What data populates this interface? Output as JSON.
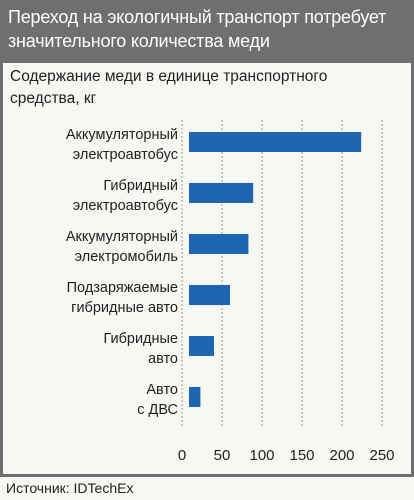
{
  "header": {
    "title": "Переход на экологичный транспорт потребует значительного количества меди"
  },
  "chart_data": {
    "type": "bar",
    "orientation": "horizontal",
    "title": "",
    "subtitle": "Содержание меди в единице транспортного средства, кг",
    "xlabel": "",
    "ylabel": "",
    "categories": [
      [
        "Аккумуляторный",
        "электроавтобус"
      ],
      [
        "Гибридный",
        "электроавтобус"
      ],
      [
        "Аккумуляторный",
        "электромобиль"
      ],
      [
        "Подзаряжаемые",
        "гибридные авто"
      ],
      [
        "Гибридные",
        "авто"
      ],
      [
        "Авто",
        "с ДВС"
      ]
    ],
    "values": [
      224,
      89,
      83,
      60,
      40,
      23
    ],
    "xlim": [
      0,
      250
    ],
    "xticks": [
      0,
      50,
      100,
      150,
      200,
      250
    ],
    "grid": true,
    "bar_color": "#1f64b0",
    "grid_color": "#9a9a9a"
  },
  "footer": {
    "source": "Источник: IDTechEx"
  }
}
